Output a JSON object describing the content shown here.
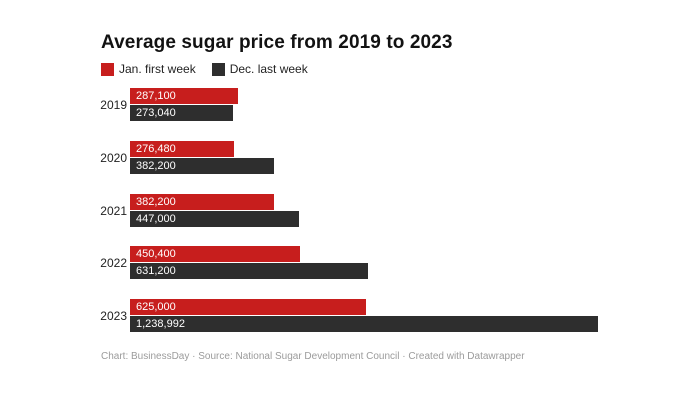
{
  "title": "Average sugar price from 2019 to 2023",
  "legend": [
    {
      "label": "Jan. first week",
      "color": "#c71e1d"
    },
    {
      "label": "Dec. last week",
      "color": "#2e2e2e"
    }
  ],
  "footer": "Chart: BusinessDay · Source: National Sugar Development Council · Created with Datawrapper",
  "colors": {
    "jan_series": "#c71e1d",
    "dec_series": "#2e2e2e",
    "title_text": "#121212",
    "axis_text": "#222222",
    "bar_value_text": "#ffffff",
    "footer_text": "#9b9b9b",
    "background": "#ffffff"
  },
  "chart_data": {
    "type": "bar",
    "orientation": "horizontal",
    "title": "Average sugar price from 2019 to 2023",
    "xlabel": "",
    "ylabel": "",
    "grid": false,
    "legend_position": "top",
    "value_labels": "inside-left",
    "categories": [
      "2019",
      "2020",
      "2021",
      "2022",
      "2023"
    ],
    "series": [
      {
        "name": "Jan. first week",
        "color": "#c71e1d",
        "values": [
          287100,
          276480,
          382200,
          450400,
          625000
        ],
        "labels": [
          "287,100",
          "276,480",
          "382,200",
          "450,400",
          "625,000"
        ]
      },
      {
        "name": "Dec. last week",
        "color": "#2e2e2e",
        "values": [
          273040,
          382200,
          447000,
          631200,
          1238992
        ],
        "labels": [
          "273,040",
          "382,200",
          "447,000",
          "631,200",
          "1,238,992"
        ]
      }
    ],
    "xmax": 1238992
  }
}
